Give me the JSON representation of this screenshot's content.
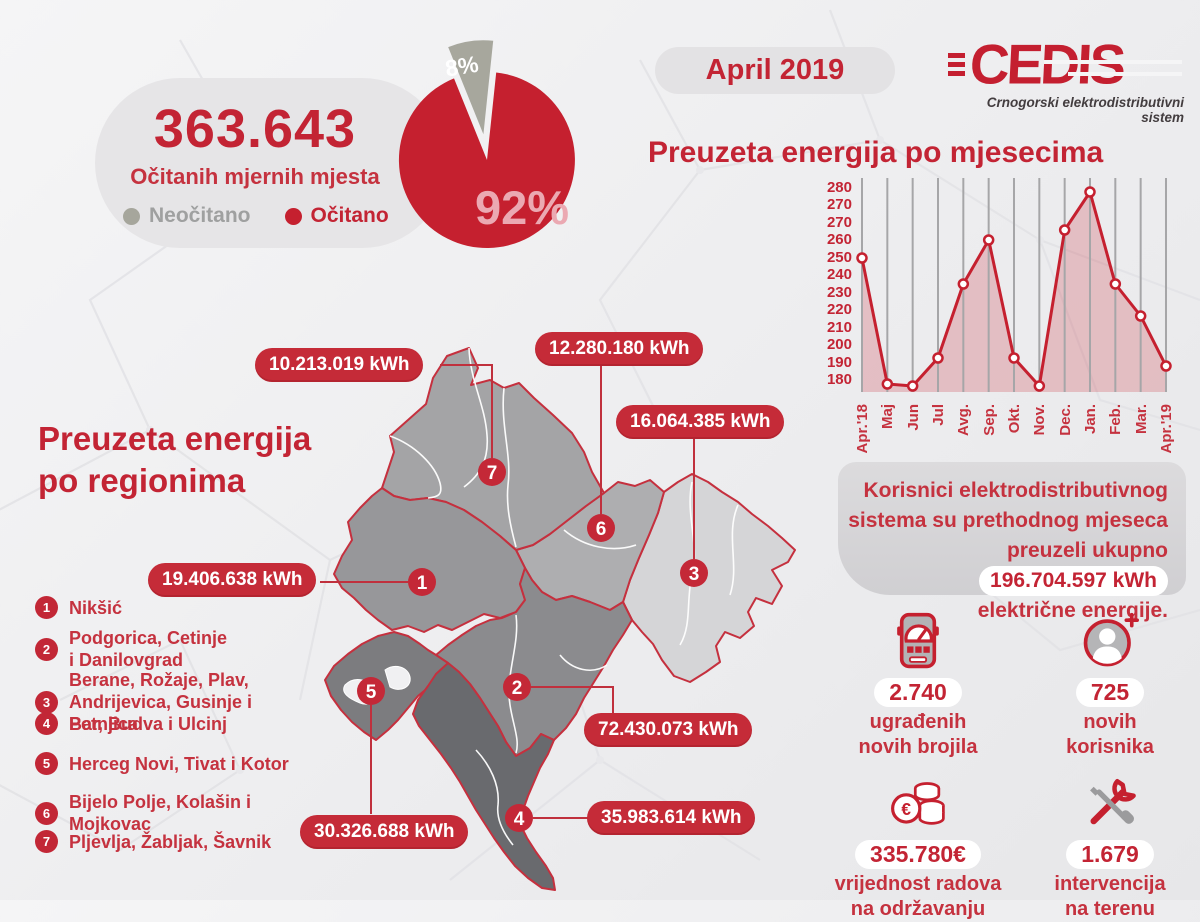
{
  "header": {
    "period_badge": "April 2019",
    "logo_name": "CEDIS",
    "logo_tagline": "Crnogorski elektrodistributivni sistem"
  },
  "readings_card": {
    "value": "363.643",
    "caption": "Očitanih mjernih mjesta",
    "legend_unread": "Neočitano",
    "legend_read": "Očitano",
    "pie_small_pct": "8%",
    "pie_big_pct": "92%"
  },
  "monthly_chart": {
    "title": "Preuzeta energija po mjesecima",
    "y_ticks": [
      "280",
      "270",
      "270",
      "260",
      "250",
      "240",
      "230",
      "220",
      "210",
      "200",
      "190",
      "180"
    ],
    "months": [
      "Apr.'18",
      "Maj",
      "Jun",
      "Jul",
      "Avg.",
      "Sep.",
      "Okt.",
      "Nov.",
      "Dec.",
      "Jan.",
      "Feb.",
      "Mar.",
      "Apr.'19"
    ],
    "values": [
      250,
      187,
      186,
      200,
      237,
      259,
      200,
      186,
      264,
      283,
      237,
      221,
      196
    ]
  },
  "info_card": {
    "line1": "Korisnici elektrodistributivnog",
    "line2": "sistema su prethodnog mjeseca",
    "line3_prefix": "preuzeli ukupno",
    "highlight": "196.704.597 kWh",
    "line4": "električne energije."
  },
  "regions_section": {
    "title_line1": "Preuzeta energija",
    "title_line2": "po regionima",
    "regions": [
      {
        "num": "1",
        "name": "Nikšić",
        "value": "19.406.638 kWh"
      },
      {
        "num": "2",
        "name": "Podgorica, Cetinje\ni Danilovgrad",
        "value": "72.430.073 kWh"
      },
      {
        "num": "3",
        "name": "Berane, Rožaje, Plav,\nAndrijevica, Gusinje i Petnjica",
        "value": "16.064.385 kWh"
      },
      {
        "num": "4",
        "name": "Bar, Budva i Ulcinj",
        "value": "35.983.614 kWh"
      },
      {
        "num": "5",
        "name": "Herceg Novi, Tivat i Kotor",
        "value": "30.326.688 kWh"
      },
      {
        "num": "6",
        "name": "Bijelo Polje, Kolašin i Mojkovac",
        "value": "12.280.180 kWh"
      },
      {
        "num": "7",
        "name": "Pljevlja, Žabljak, Šavnik",
        "value": "10.213.019 kWh"
      }
    ]
  },
  "stats": [
    {
      "number": "2.740",
      "caption": "ugrađenih\nnovih brojila",
      "icon": "meter-icon"
    },
    {
      "number": "725",
      "caption": "novih\nkorisnika",
      "icon": "user-plus-icon"
    },
    {
      "number": "335.780€",
      "caption": "vrijednost radova\nna održavanju",
      "icon": "euro-coins-icon"
    },
    {
      "number": "1.679",
      "caption": "intervencija\nna terenu",
      "icon": "tools-icon"
    }
  ],
  "colors": {
    "brand_red": "#c32434",
    "pill_red": "#c52b38",
    "pie_gray": "#a7a79d",
    "chart_line": "#c5202f"
  },
  "chart_data": [
    {
      "type": "pie",
      "title": "Očitanih mjernih mjesta",
      "labels": [
        "Očitano",
        "Neočitano"
      ],
      "values": [
        92,
        8
      ],
      "colors": [
        "#c5202f",
        "#a7a79d"
      ],
      "total": "363.643",
      "annotation_labels": [
        "92%",
        "8%"
      ]
    },
    {
      "type": "line",
      "title": "Preuzeta energija po mjesecima",
      "x": [
        "Apr.'18",
        "Maj",
        "Jun",
        "Jul",
        "Avg.",
        "Sep.",
        "Okt.",
        "Nov.",
        "Dec.",
        "Jan.",
        "Feb.",
        "Mar.",
        "Apr.'19"
      ],
      "series": [
        {
          "name": "Preuzeta energija",
          "values": [
            250,
            187,
            186,
            200,
            237,
            259,
            200,
            186,
            264,
            283,
            237,
            221,
            196
          ]
        }
      ],
      "ylim": [
        180,
        290
      ],
      "y_tick_labels_as_printed": [
        "280",
        "270",
        "270",
        "260",
        "250",
        "240",
        "230",
        "220",
        "210",
        "200",
        "190",
        "180"
      ],
      "grid": "vertical",
      "legend": "none"
    },
    {
      "type": "table",
      "title": "Preuzeta energija po regionima (kWh)",
      "categories": [
        "Nikšić",
        "Podgorica, Cetinje i Danilovgrad",
        "Berane, Rožaje, Plav, Andrijevica, Gusinje i Petnjica",
        "Bar, Budva i Ulcinj",
        "Herceg Novi, Tivat i Kotor",
        "Bijelo Polje, Kolašin i Mojkovac",
        "Pljevlja, Žabljak, Šavnik"
      ],
      "values": [
        19406638,
        72430073,
        16064385,
        35983614,
        30326688,
        12280180,
        10213019
      ]
    }
  ]
}
